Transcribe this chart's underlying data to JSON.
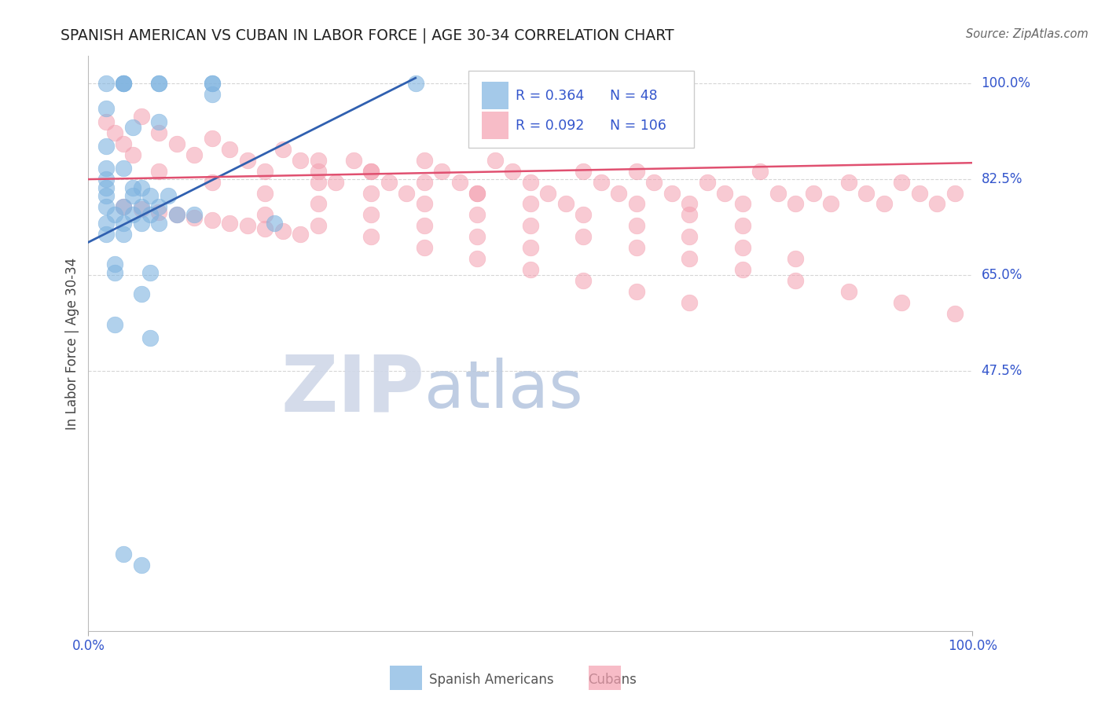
{
  "title": "SPANISH AMERICAN VS CUBAN IN LABOR FORCE | AGE 30-34 CORRELATION CHART",
  "source": "Source: ZipAtlas.com",
  "ylabel": "In Labor Force | Age 30-34",
  "background_color": "#ffffff",
  "blue_color": "#7eb3e0",
  "pink_color": "#f4a0b0",
  "blue_line_color": "#3060b0",
  "pink_line_color": "#e05070",
  "legend_R_blue": "0.364",
  "legend_N_blue": "48",
  "legend_R_pink": "0.092",
  "legend_N_pink": "106",
  "label_color": "#3355cc",
  "grid_color": "#cccccc",
  "right_ytick_labels": [
    "100.0%",
    "82.5%",
    "65.0%",
    "47.5%"
  ],
  "right_ytick_values": [
    1.0,
    0.825,
    0.65,
    0.475
  ],
  "blue_points_x": [
    0.02,
    0.02,
    0.04,
    0.04,
    0.04,
    0.05,
    0.08,
    0.08,
    0.08,
    0.14,
    0.14,
    0.14,
    0.02,
    0.04,
    0.02,
    0.02,
    0.02,
    0.05,
    0.06,
    0.02,
    0.05,
    0.07,
    0.09,
    0.02,
    0.04,
    0.06,
    0.08,
    0.03,
    0.05,
    0.07,
    0.1,
    0.12,
    0.02,
    0.04,
    0.06,
    0.08,
    0.21,
    0.02,
    0.04,
    0.03,
    0.07,
    0.03,
    0.07,
    0.37,
    0.03,
    0.06,
    0.04,
    0.06
  ],
  "blue_points_y": [
    1.0,
    0.955,
    1.0,
    1.0,
    1.0,
    0.92,
    1.0,
    1.0,
    0.93,
    1.0,
    1.0,
    0.98,
    0.885,
    0.845,
    0.845,
    0.825,
    0.81,
    0.81,
    0.81,
    0.795,
    0.795,
    0.795,
    0.795,
    0.775,
    0.775,
    0.775,
    0.775,
    0.76,
    0.76,
    0.76,
    0.76,
    0.76,
    0.745,
    0.745,
    0.745,
    0.745,
    0.745,
    0.725,
    0.725,
    0.655,
    0.655,
    0.56,
    0.535,
    1.0,
    0.67,
    0.615,
    0.14,
    0.12
  ],
  "pink_points_x": [
    0.02,
    0.03,
    0.04,
    0.05,
    0.06,
    0.08,
    0.1,
    0.12,
    0.14,
    0.16,
    0.18,
    0.2,
    0.22,
    0.24,
    0.26,
    0.28,
    0.3,
    0.32,
    0.34,
    0.36,
    0.38,
    0.4,
    0.42,
    0.44,
    0.46,
    0.48,
    0.5,
    0.52,
    0.54,
    0.56,
    0.58,
    0.6,
    0.62,
    0.64,
    0.66,
    0.68,
    0.7,
    0.72,
    0.74,
    0.76,
    0.78,
    0.8,
    0.82,
    0.84,
    0.86,
    0.88,
    0.9,
    0.92,
    0.94,
    0.96,
    0.98,
    0.04,
    0.06,
    0.08,
    0.1,
    0.12,
    0.14,
    0.16,
    0.18,
    0.2,
    0.22,
    0.24,
    0.08,
    0.14,
    0.2,
    0.26,
    0.32,
    0.38,
    0.44,
    0.5,
    0.26,
    0.32,
    0.38,
    0.44,
    0.5,
    0.56,
    0.62,
    0.68,
    0.74,
    0.8,
    0.2,
    0.26,
    0.32,
    0.38,
    0.44,
    0.5,
    0.56,
    0.62,
    0.68,
    0.26,
    0.32,
    0.38,
    0.44,
    0.5,
    0.56,
    0.62,
    0.68,
    0.74,
    0.8,
    0.86,
    0.92,
    0.98,
    0.62,
    0.68,
    0.74
  ],
  "pink_points_y": [
    0.93,
    0.91,
    0.89,
    0.87,
    0.94,
    0.91,
    0.89,
    0.87,
    0.9,
    0.88,
    0.86,
    0.84,
    0.88,
    0.86,
    0.84,
    0.82,
    0.86,
    0.84,
    0.82,
    0.8,
    0.86,
    0.84,
    0.82,
    0.8,
    0.86,
    0.84,
    0.82,
    0.8,
    0.78,
    0.84,
    0.82,
    0.8,
    0.84,
    0.82,
    0.8,
    0.78,
    0.82,
    0.8,
    0.78,
    0.84,
    0.8,
    0.78,
    0.8,
    0.78,
    0.82,
    0.8,
    0.78,
    0.82,
    0.8,
    0.78,
    0.8,
    0.775,
    0.77,
    0.765,
    0.76,
    0.755,
    0.75,
    0.745,
    0.74,
    0.735,
    0.73,
    0.725,
    0.84,
    0.82,
    0.8,
    0.78,
    0.76,
    0.74,
    0.72,
    0.7,
    0.86,
    0.84,
    0.82,
    0.8,
    0.78,
    0.76,
    0.74,
    0.72,
    0.7,
    0.68,
    0.76,
    0.74,
    0.72,
    0.7,
    0.68,
    0.66,
    0.64,
    0.62,
    0.6,
    0.82,
    0.8,
    0.78,
    0.76,
    0.74,
    0.72,
    0.7,
    0.68,
    0.66,
    0.64,
    0.62,
    0.6,
    0.58,
    0.78,
    0.76,
    0.74
  ],
  "blue_trend_x": [
    0.0,
    0.37
  ],
  "blue_trend_y": [
    0.71,
    1.01
  ],
  "pink_trend_x": [
    0.0,
    1.0
  ],
  "pink_trend_y": [
    0.825,
    0.855
  ],
  "watermark_zip_color": "#d0d8e8",
  "watermark_atlas_color": "#b8c8e0",
  "xlim": [
    0.0,
    1.0
  ],
  "ylim": [
    0.0,
    1.05
  ]
}
